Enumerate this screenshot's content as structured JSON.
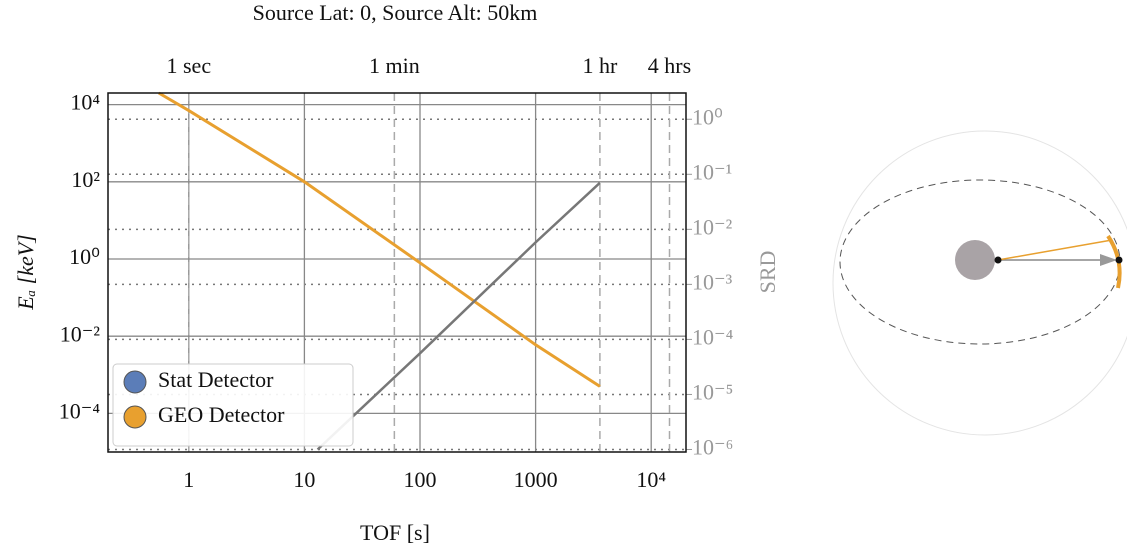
{
  "chart_data": {
    "type": "line",
    "title": "Source Lat: 0, Source Alt: 50km",
    "x_label": "TOF [s]",
    "y_label": "Eₐ [keV]",
    "y2_label": "SRD",
    "log_x": true,
    "log_y": true,
    "log_y2": true,
    "grid": true,
    "xlim": [
      0.2,
      20000
    ],
    "ylim": [
      1e-05,
      20000
    ],
    "y2lim": [
      9e-07,
      3
    ],
    "xticks": [
      1,
      10,
      100,
      1000,
      {
        "value": 10000,
        "label": "10⁴"
      }
    ],
    "yticks": [
      {
        "value": 0.0001,
        "label": "10⁻⁴"
      },
      {
        "value": 0.01,
        "label": "10⁻²"
      },
      {
        "value": 1,
        "label": "10⁰"
      },
      {
        "value": 100,
        "label": "10²"
      },
      {
        "value": 10000,
        "label": "10⁴"
      }
    ],
    "y2ticks": [
      {
        "value": 1e-06,
        "label": "10⁻⁶"
      },
      {
        "value": 1e-05,
        "label": "10⁻⁵"
      },
      {
        "value": 0.0001,
        "label": "10⁻⁴"
      },
      {
        "value": 0.001,
        "label": "10⁻³"
      },
      {
        "value": 0.01,
        "label": "10⁻²"
      },
      {
        "value": 0.1,
        "label": "10⁻¹"
      },
      {
        "value": 1,
        "label": "10⁰"
      }
    ],
    "x2ticks": [
      {
        "value": 1,
        "label": "1 sec"
      },
      {
        "value": 60,
        "label": "1 min"
      },
      {
        "value": 3600,
        "label": "1 hr"
      },
      {
        "value": 14400,
        "label": "4 hrs"
      }
    ],
    "legend": "lower left",
    "series": [
      {
        "name": "Stat Detector",
        "color": "#5b7db8",
        "x": [
          1,
          10
        ],
        "values": [
          null,
          null
        ]
      },
      {
        "name": "GEO Detector",
        "color": "#e8a02f",
        "x": [
          0.55,
          1,
          10,
          100,
          1000,
          3600
        ],
        "values": [
          20000,
          7000,
          100,
          0.8,
          0.006,
          0.0005
        ]
      },
      {
        "color": "#777777",
        "axis": "y2",
        "x": [
          13,
          100,
          1000,
          3600
        ],
        "values": [
          1e-06,
          5.6e-05,
          0.0058,
          0.07
        ]
      }
    ]
  }
}
